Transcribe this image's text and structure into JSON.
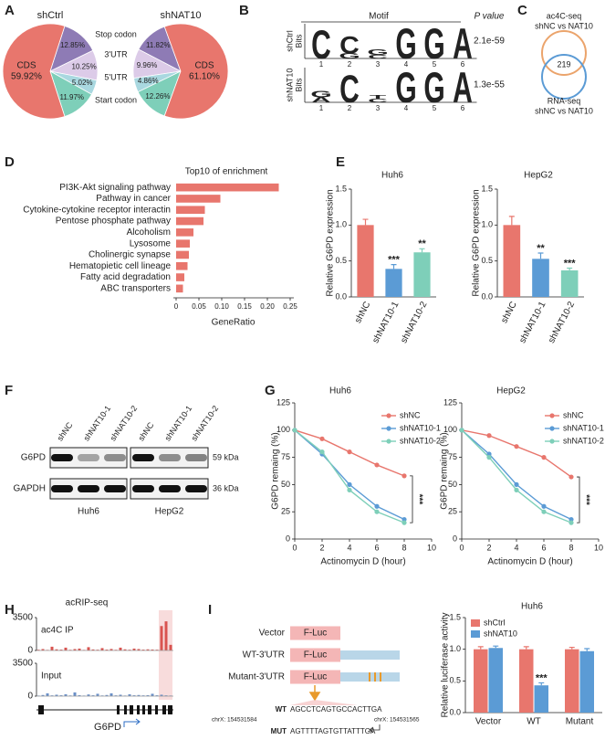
{
  "chart_data": [
    {
      "type": "pie",
      "panel": "A",
      "categories": [
        "CDS",
        "Stop codon",
        "3'UTR",
        "5'UTR",
        "Start codon"
      ],
      "colors": [
        "#e8766d",
        "#8e7bb5",
        "#dccbe8",
        "#a9d8e0",
        "#7ecfb9"
      ],
      "series": [
        {
          "name": "shCtrl",
          "values": [
            59.92,
            12.85,
            10.25,
            5.02,
            11.97
          ],
          "value_labels": [
            "59.92%",
            "12.85%",
            "10.25%",
            "5.02%",
            "11.97%"
          ]
        },
        {
          "name": "shNAT10",
          "values": [
            61.1,
            11.82,
            9.96,
            4.86,
            12.26
          ],
          "value_labels": [
            "61.10%",
            "11.82%",
            "9.96%",
            "4.86%",
            "12.26%"
          ]
        }
      ]
    },
    {
      "type": "motif",
      "panel": "B",
      "header": [
        "Motif",
        "P value"
      ],
      "axis_label": "Bits",
      "positions": [
        1,
        2,
        3,
        4,
        5,
        6
      ],
      "ylim": [
        0,
        2
      ],
      "letter_colors": {
        "A": "#d7263d",
        "C": "#1f2a8a",
        "G": "#f2b63e",
        "T": "#2e9e4a"
      },
      "rows": [
        {
          "name": "shCtrl",
          "p": "2.1e-59",
          "logo": [
            [
              {
                "letter": "C",
                "bits": 1.7
              }
            ],
            [
              {
                "letter": "G",
                "bits": 0.3
              },
              {
                "letter": "C",
                "bits": 1.0
              }
            ],
            [
              {
                "letter": "C",
                "bits": 0.2
              },
              {
                "letter": "G",
                "bits": 0.3
              }
            ],
            [
              {
                "letter": "G",
                "bits": 1.8
              }
            ],
            [
              {
                "letter": "G",
                "bits": 1.8
              }
            ],
            [
              {
                "letter": "A",
                "bits": 1.8
              }
            ]
          ]
        },
        {
          "name": "shNAT10",
          "p": "1.3e-55",
          "logo": [
            [
              {
                "letter": "A",
                "bits": 0.3
              },
              {
                "letter": "G",
                "bits": 0.4
              }
            ],
            [
              {
                "letter": "C",
                "bits": 1.6
              }
            ],
            [
              {
                "letter": "C",
                "bits": 0.2
              },
              {
                "letter": "T",
                "bits": 0.2
              }
            ],
            [
              {
                "letter": "G",
                "bits": 1.8
              }
            ],
            [
              {
                "letter": "G",
                "bits": 1.8
              }
            ],
            [
              {
                "letter": "A",
                "bits": 1.8
              }
            ]
          ]
        }
      ]
    },
    {
      "type": "venn",
      "panel": "C",
      "sets": [
        {
          "lines": [
            "ac4C-seq",
            "shNC vs NAT10"
          ],
          "color": "#eba46c"
        },
        {
          "lines": [
            "RNA-seq",
            "shNC vs NAT10"
          ],
          "color": "#5b9bd5"
        }
      ],
      "overlap": 219
    },
    {
      "type": "hbar",
      "panel": "D",
      "title": "Top10 of enrichment",
      "xlabel": "GeneRatio",
      "color": "#e8766d",
      "categories": [
        "PI3K-Akt signaling pathway",
        "Pathway in cancer",
        "Cytokine-cytokine receptor interactin",
        "Pentose phosphate pathway",
        "Alcoholism",
        "Lysosome",
        "Cholinergic synapse",
        "Hematopietic cell lineage",
        "Fatty acid degradation",
        "ABC transporters"
      ],
      "values": [
        0.225,
        0.097,
        0.063,
        0.06,
        0.038,
        0.03,
        0.028,
        0.025,
        0.018,
        0.015
      ],
      "xlim": [
        0,
        0.25
      ],
      "xticks": [
        0,
        0.05,
        {
          "value": 0.1,
          "label": "0.10"
        },
        0.15,
        {
          "value": 0.2,
          "label": "0.20"
        },
        0.25
      ]
    },
    {
      "type": "bar",
      "panel": "E",
      "title": "Huh6",
      "ylabel": "Relative G6PD expression",
      "categories": [
        "shNC",
        "shNAT10-1",
        "shNAT10-2"
      ],
      "values": [
        1.0,
        0.39,
        0.62
      ],
      "errors": [
        0.08,
        0.06,
        0.05
      ],
      "sig": [
        null,
        "***",
        "**"
      ],
      "colors": [
        "#e8766d",
        "#5b9bd5",
        "#7ecfb9"
      ],
      "ylim": [
        0,
        1.5
      ],
      "yticks": [
        {
          "value": 0,
          "label": "0.0"
        },
        0.5,
        {
          "value": 1,
          "label": "1.0"
        },
        1.5
      ]
    },
    {
      "type": "bar",
      "title": "HepG2",
      "ylabel": "Relative G6PD expression",
      "categories": [
        "shNC",
        "shNAT10-1",
        "shNAT10-2"
      ],
      "values": [
        1.0,
        0.53,
        0.37
      ],
      "errors": [
        0.12,
        0.08,
        0.03
      ],
      "sig": [
        null,
        "**",
        "***"
      ],
      "colors": [
        "#e8766d",
        "#5b9bd5",
        "#7ecfb9"
      ],
      "ylim": [
        0,
        1.5
      ],
      "yticks": [
        {
          "value": 0,
          "label": "0.0"
        },
        0.5,
        {
          "value": 1,
          "label": "1.0"
        },
        1.5
      ]
    },
    {
      "type": "blot",
      "panel": "F",
      "lanes": [
        "shNC",
        "shNAT10-1",
        "shNAT10-2",
        "shNC",
        "shNAT10-1",
        "shNAT10-2"
      ],
      "rows": [
        {
          "name": "G6PD",
          "size": "59 kDa"
        },
        {
          "name": "GAPDH",
          "size": "36 kDa"
        }
      ],
      "groups": [
        "Huh6",
        "HepG2"
      ]
    },
    {
      "type": "line",
      "panel": "G",
      "title": "Huh6",
      "xlabel": "Actinomycin D (hour)",
      "ylabel": "G6PD remaing (%)",
      "x": [
        0,
        2,
        4,
        6,
        8
      ],
      "xlim": [
        0,
        10
      ],
      "xticks": [
        0,
        2,
        4,
        6,
        8,
        10
      ],
      "ylim": [
        0,
        125
      ],
      "yticks": [
        0,
        25,
        50,
        75,
        100,
        125
      ],
      "annotation": "***",
      "series": [
        {
          "name": "shNC",
          "color": "#e8766d",
          "values": [
            100,
            92,
            80,
            68,
            58
          ]
        },
        {
          "name": "shNAT10-1",
          "color": "#5b9bd5",
          "values": [
            100,
            78,
            50,
            30,
            18
          ]
        },
        {
          "name": "shNAT10-2",
          "color": "#7ecfb9",
          "values": [
            100,
            80,
            45,
            25,
            15
          ]
        }
      ]
    },
    {
      "type": "line",
      "title": "HepG2",
      "xlabel": "Actinomycin D (hour)",
      "ylabel": "G6PD remaing (%)",
      "x": [
        0,
        2,
        4,
        6,
        8
      ],
      "xlim": [
        0,
        10
      ],
      "xticks": [
        0,
        2,
        4,
        6,
        8,
        10
      ],
      "ylim": [
        0,
        125
      ],
      "yticks": [
        0,
        25,
        50,
        75,
        100,
        125
      ],
      "annotation": "***",
      "series": [
        {
          "name": "shNC",
          "color": "#e8766d",
          "values": [
            100,
            95,
            85,
            75,
            57
          ]
        },
        {
          "name": "shNAT10-1",
          "color": "#5b9bd5",
          "values": [
            100,
            78,
            50,
            30,
            18
          ]
        },
        {
          "name": "shNAT10-2",
          "color": "#7ecfb9",
          "values": [
            100,
            75,
            45,
            25,
            15
          ]
        }
      ]
    },
    {
      "type": "track",
      "panel": "H",
      "title": "acRIP-seq",
      "gene": "G6PD",
      "ylim": [
        0,
        3500
      ],
      "yticks": [
        0,
        3500
      ],
      "tracks": [
        {
          "name": "ac4C IP",
          "color": "#d9534f",
          "signal": [
            80,
            150,
            60,
            400,
            120,
            90,
            300,
            70,
            150,
            200,
            60,
            350,
            110,
            80,
            250,
            90,
            160,
            70,
            300,
            120,
            80,
            200,
            150,
            90,
            120,
            100,
            80,
            2600,
            3100,
            600
          ]
        },
        {
          "name": "Input",
          "color": "#6a8fc7",
          "signal": [
            60,
            120,
            300,
            80,
            150,
            90,
            200,
            70,
            400,
            100,
            60,
            180,
            90,
            250,
            70,
            120,
            300,
            80,
            150,
            60,
            200,
            90,
            120,
            80,
            100,
            250,
            90,
            150,
            80,
            60
          ]
        }
      ]
    },
    {
      "type": "schematic",
      "panel": "I",
      "constructs": [
        "Vector",
        "WT-3'UTR",
        "Mutant-3'UTR"
      ],
      "luc": "F-Luc",
      "sequences": [
        {
          "label": "WT",
          "seq": "AGCCTCAGTGCCACTTGA"
        },
        {
          "label": "MUT",
          "seq": "AGTTTTAGTGTTATTTGA"
        }
      ],
      "coords": [
        "chrX: 154531584",
        "chrX: 154531565"
      ]
    },
    {
      "type": "bar",
      "title": "Huh6",
      "ylabel": "Relative luciferase activity",
      "categories": [
        "Vector",
        "WT",
        "Mutant"
      ],
      "series": [
        {
          "name": "shCtrl",
          "color": "#e8766d",
          "values": [
            1.0,
            1.0,
            1.0
          ],
          "errors": [
            0.04,
            0.04,
            0.03
          ]
        },
        {
          "name": "shNAT10",
          "color": "#5b9bd5",
          "values": [
            1.02,
            0.43,
            0.97
          ],
          "errors": [
            0.03,
            0.04,
            0.04
          ],
          "sig": [
            null,
            "***",
            null
          ]
        }
      ],
      "ylim": [
        0,
        1.5
      ],
      "yticks": [
        {
          "value": 0,
          "label": "0.0"
        },
        0.5,
        {
          "value": 1,
          "label": "1.0"
        },
        1.5
      ]
    }
  ]
}
